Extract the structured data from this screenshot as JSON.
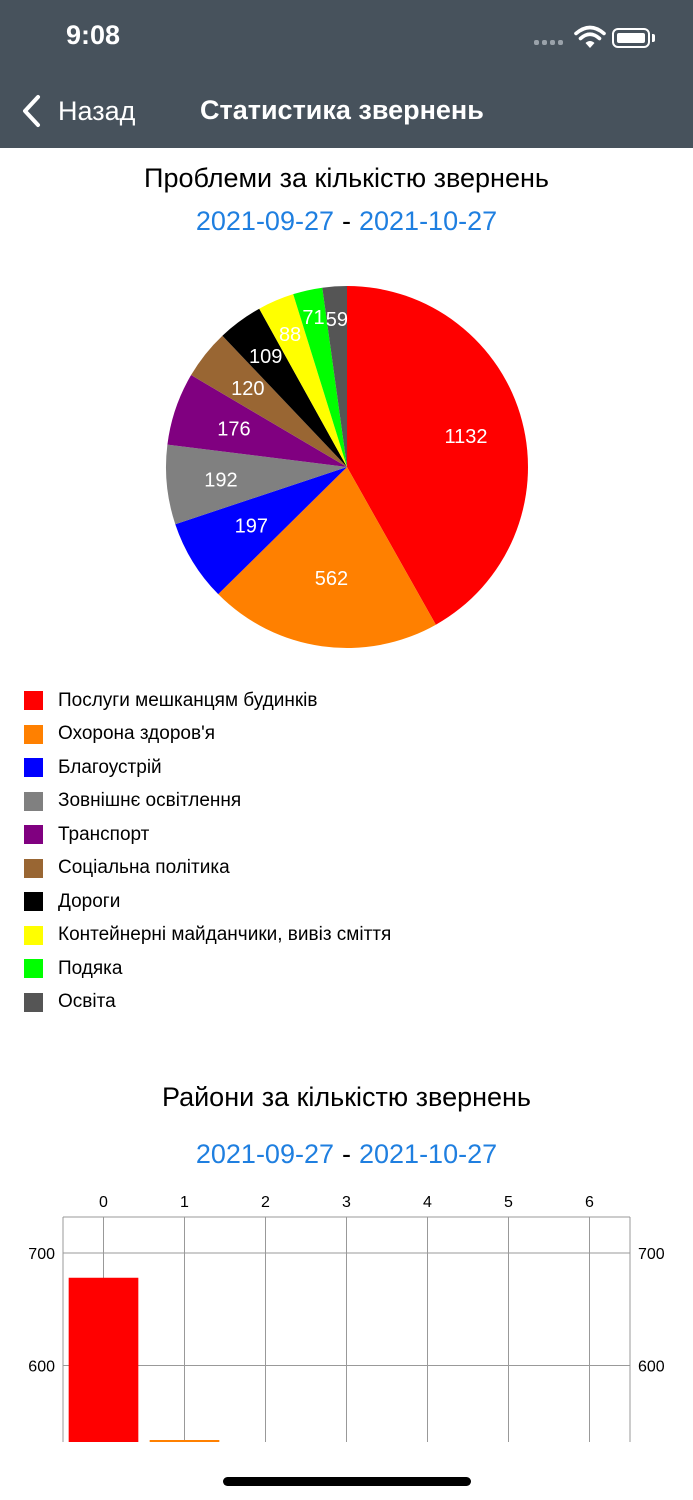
{
  "status_bar": {
    "time": "9:08"
  },
  "nav": {
    "back_label": "Назад",
    "title": "Статистика звернень"
  },
  "pie_section": {
    "title": "Проблеми за кількістю звернень",
    "date_from": "2021-09-27",
    "date_sep": "-",
    "date_to": "2021-10-27"
  },
  "bar_section": {
    "title": "Райони за кількістю звернень",
    "date_from": "2021-09-27",
    "date_sep": "-",
    "date_to": "2021-10-27"
  },
  "colors": {
    "nav_bg": "#47525c",
    "link": "#1f7fe0"
  },
  "chart_data": [
    {
      "type": "pie",
      "categories": [
        "Послуги мешканцям будинків",
        "Охорона здоров'я",
        "Благоустрій",
        "Зовнішнє освітлення",
        "Транспорт",
        "Соціальна політика",
        "Дороги",
        "Контейнерні майданчики, вивіз сміття",
        "Подяка",
        "Освіта"
      ],
      "values": [
        1132,
        562,
        197,
        192,
        176,
        120,
        109,
        88,
        71,
        59
      ],
      "colors": [
        "#ff0000",
        "#ff8000",
        "#0000ff",
        "#808080",
        "#800080",
        "#996633",
        "#000000",
        "#ffff00",
        "#00ff00",
        "#555555"
      ],
      "label_colors": [
        "#ffffff",
        "#ffffff",
        "#ffffff",
        "#ffffff",
        "#ffffff",
        "#ffffff",
        "#ffffff",
        "#ffffff",
        "#ffffff",
        "#ffffff"
      ],
      "legend": "bottom-left"
    },
    {
      "type": "bar",
      "x_ticks": [
        "0",
        "1",
        "2",
        "3",
        "4",
        "5",
        "6"
      ],
      "x": [
        0,
        1
      ],
      "values": [
        678,
        533
      ],
      "colors": [
        "#ff0000",
        "#ff8000"
      ],
      "y_ticks": [
        "600",
        "700"
      ],
      "ylim": [
        532,
        732
      ],
      "grid": true
    }
  ]
}
